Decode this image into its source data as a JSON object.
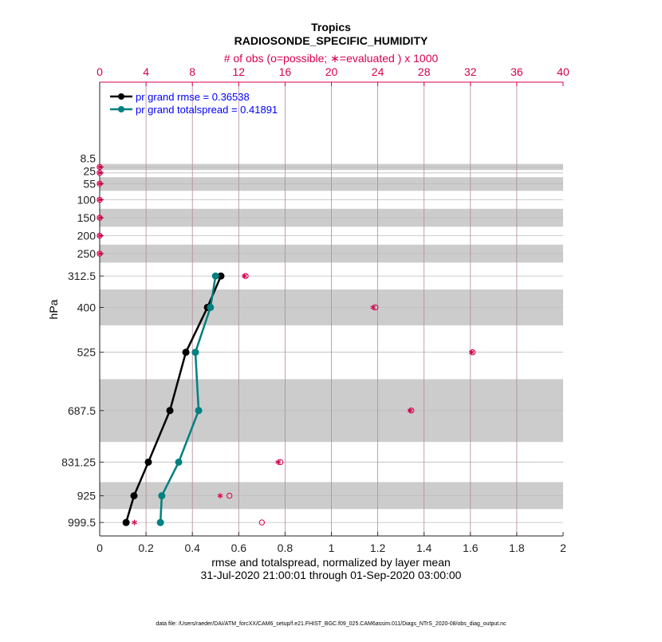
{
  "chart_data": {
    "type": "line",
    "title": "Tropics",
    "subtitle": "RADIOSONDE_SPECIFIC_HUMIDITY",
    "xlabel": "rmse and totalspread, normalized by layer mean",
    "xlabel2": "31-Jul-2020 21:00:01 through 01-Sep-2020 03:00:00",
    "ylabel": "hPa",
    "top_xlabel": "# of obs (o=possible; ∗=evaluated ) x 1000",
    "xlim": [
      0,
      2
    ],
    "xticks": [
      "0",
      "0.2",
      "0.4",
      "0.6",
      "0.8",
      "1",
      "1.2",
      "1.4",
      "1.6",
      "1.8",
      "2"
    ],
    "top_xlim": [
      0,
      40
    ],
    "top_xticks": [
      "0",
      "4",
      "8",
      "12",
      "16",
      "20",
      "24",
      "28",
      "32",
      "36",
      "40"
    ],
    "ylim": [
      1037,
      -228
    ],
    "levels": [
      8.5,
      25,
      55,
      100,
      150,
      200,
      250,
      312.5,
      400,
      525,
      687.5,
      831.25,
      925,
      999.5
    ],
    "ytick_labels": [
      "8.5",
      "25",
      "55",
      "100",
      "150",
      "200",
      "250",
      "312.5",
      "400",
      "525",
      "687.5",
      "831.25",
      "925",
      "999.5"
    ],
    "layer_bands": [
      [
        0,
        17
      ],
      [
        37,
        75
      ],
      [
        125,
        175
      ],
      [
        225,
        275
      ],
      [
        350,
        450
      ],
      [
        600,
        775
      ],
      [
        887,
        962
      ]
    ],
    "grid": true,
    "legend_placement": "top-left",
    "series": [
      {
        "name": "pr grand rmse = 0.36538",
        "color": "#000000",
        "levels": [
          312.5,
          400,
          525,
          687.5,
          831.25,
          925,
          999.5
        ],
        "values": [
          0.523,
          0.465,
          0.372,
          0.303,
          0.21,
          0.148,
          0.114
        ]
      },
      {
        "name": "pr grand totalspread = 0.41891",
        "color": "#008080",
        "levels": [
          312.5,
          400,
          525,
          687.5,
          831.25,
          925,
          999.5
        ],
        "values": [
          0.5,
          0.478,
          0.413,
          0.427,
          0.341,
          0.268,
          0.262
        ]
      }
    ],
    "obs_possible": [
      0,
      0,
      0,
      0,
      0,
      0,
      0,
      12.6,
      23.8,
      32.2,
      26.9,
      15.6,
      11.2,
      14.0
    ],
    "obs_evaluated": [
      0,
      0,
      0,
      0,
      0,
      0,
      0,
      12.5,
      23.6,
      32.1,
      26.8,
      15.4,
      10.4,
      3.0
    ],
    "obs_color": "#d6004f"
  },
  "footer": "data file: /Users/raeder/DAI/ATM_forcXX/CAM6_setup/f.e21.FHIST_BGC.f09_025.CAM6assim.011/Diags_NTrS_2020-08/obs_diag_output.nc"
}
